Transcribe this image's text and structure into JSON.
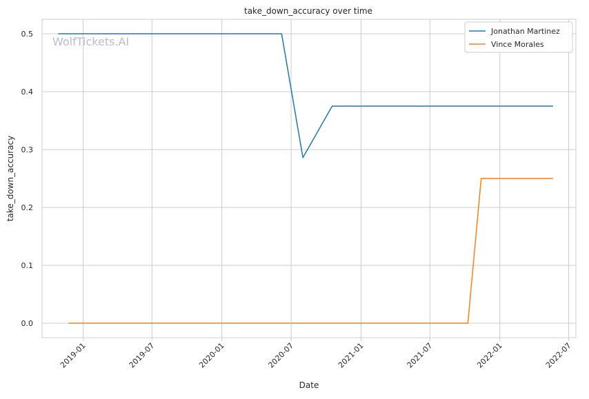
{
  "chart_data": {
    "type": "line",
    "title": "take_down_accuracy over time",
    "xlabel": "Date",
    "ylabel": "take_down_accuracy",
    "watermark": "WolfTickets.AI",
    "x_type": "date",
    "xlim": [
      "2018-09-15",
      "2022-07-20"
    ],
    "ylim": [
      -0.025,
      0.525
    ],
    "x_ticks": [
      "2019-01",
      "2019-07",
      "2020-01",
      "2020-07",
      "2021-01",
      "2021-07",
      "2022-01",
      "2022-07"
    ],
    "y_ticks": [
      "0.0",
      "0.1",
      "0.2",
      "0.3",
      "0.4",
      "0.5"
    ],
    "grid": true,
    "legend_position": "top-right",
    "series": [
      {
        "name": "Jonathan Martinez",
        "color": "#1f77b4",
        "points": [
          [
            "2018-10-27",
            0.5
          ],
          [
            "2020-06-06",
            0.5
          ],
          [
            "2020-08-01",
            0.286
          ],
          [
            "2020-10-17",
            0.375
          ],
          [
            "2022-05-21",
            0.375
          ]
        ]
      },
      {
        "name": "Vince Morales",
        "color": "#ff7f0e",
        "points": [
          [
            "2018-11-24",
            0.0
          ],
          [
            "2021-10-09",
            0.0
          ],
          [
            "2021-11-13",
            0.25
          ],
          [
            "2022-05-21",
            0.25
          ]
        ]
      }
    ]
  }
}
